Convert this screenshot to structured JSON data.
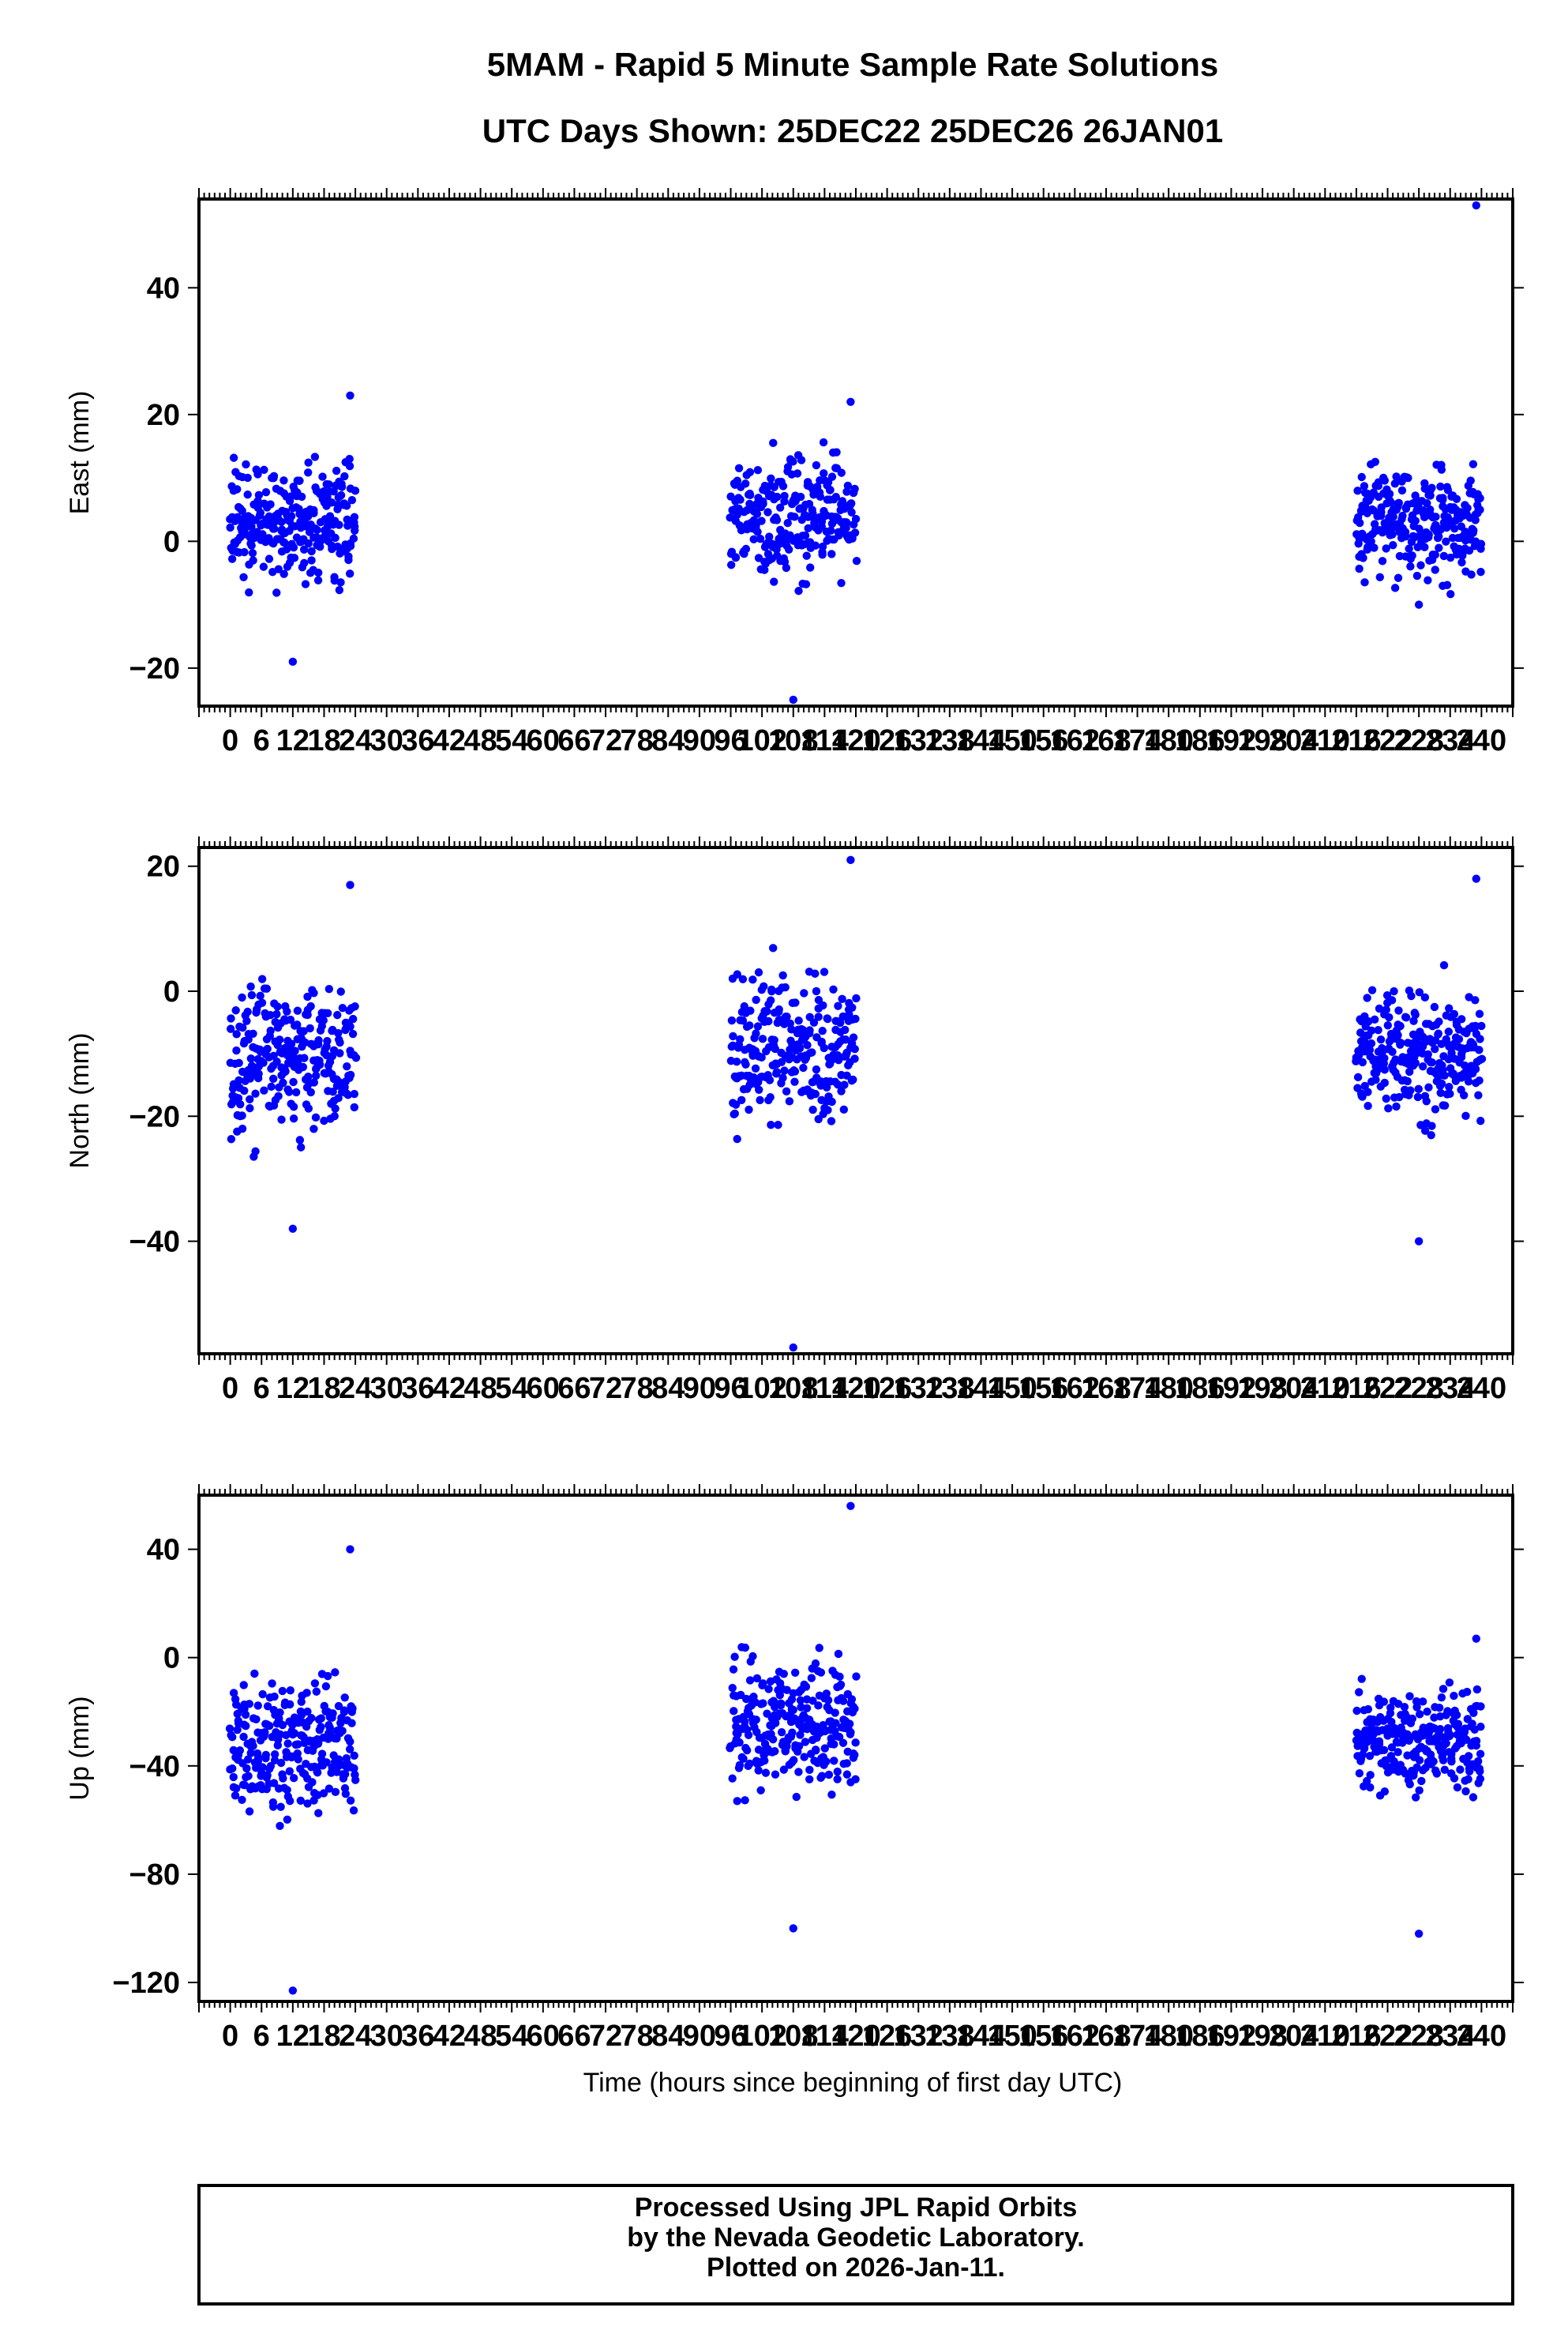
{
  "title_line1": "5MAM - Rapid 5 Minute Sample Rate Solutions",
  "title_line2": "UTC Days Shown:  25DEC22 25DEC26 26JAN01",
  "x_label": "Time (hours since beginning of first day UTC)",
  "footer": {
    "line1": "Processed Using JPL Rapid Orbits",
    "line2": "by the Nevada Geodetic Laboratory.",
    "line3": "Plotted on 2026-Jan-11."
  },
  "colors": {
    "points": "#0000ff",
    "axes": "#000000",
    "background": "#ffffff"
  },
  "chart_data": [
    {
      "type": "scatter",
      "ylabel": "East (mm)",
      "xlim": [
        -6,
        246
      ],
      "ylim": [
        -26,
        54
      ],
      "x_ticks": [
        0,
        6,
        12,
        18,
        24,
        30,
        36,
        42,
        48,
        54,
        60,
        66,
        72,
        78,
        84,
        90,
        96,
        102,
        108,
        114,
        120,
        126,
        132,
        138,
        144,
        150,
        156,
        162,
        168,
        174,
        180,
        186,
        192,
        198,
        204,
        210,
        216,
        222,
        228,
        234,
        240
      ],
      "y_ticks": [
        -20,
        0,
        20,
        40
      ],
      "clusters": [
        {
          "x_range": [
            0,
            24
          ],
          "y_center": 3,
          "y_spread": 11,
          "y_min": -19,
          "y_max": 23
        },
        {
          "x_range": [
            96,
            120
          ],
          "y_center": 4,
          "y_spread": 11,
          "y_min": -25,
          "y_max": 22
        },
        {
          "x_range": [
            216,
            240
          ],
          "y_center": 3,
          "y_spread": 10,
          "y_min": -10,
          "y_max": 53
        }
      ]
    },
    {
      "type": "scatter",
      "ylabel": "North (mm)",
      "xlim": [
        -6,
        246
      ],
      "ylim": [
        -58,
        23
      ],
      "x_ticks": [
        0,
        6,
        12,
        18,
        24,
        30,
        36,
        42,
        48,
        54,
        60,
        66,
        72,
        78,
        84,
        90,
        96,
        102,
        108,
        114,
        120,
        126,
        132,
        138,
        144,
        150,
        156,
        162,
        168,
        174,
        180,
        186,
        192,
        198,
        204,
        210,
        216,
        222,
        228,
        234,
        240
      ],
      "y_ticks": [
        -40,
        -20,
        0,
        20
      ],
      "clusters": [
        {
          "x_range": [
            0,
            24
          ],
          "y_center": -11,
          "y_spread": 14,
          "y_min": -38,
          "y_max": 17
        },
        {
          "x_range": [
            96,
            120
          ],
          "y_center": -9,
          "y_spread": 14,
          "y_min": -57,
          "y_max": 21
        },
        {
          "x_range": [
            216,
            240
          ],
          "y_center": -10,
          "y_spread": 12,
          "y_min": -40,
          "y_max": 18
        }
      ]
    },
    {
      "type": "scatter",
      "ylabel": "Up (mm)",
      "xlim": [
        -6,
        246
      ],
      "ylim": [
        -127,
        60
      ],
      "x_ticks": [
        0,
        6,
        12,
        18,
        24,
        30,
        36,
        42,
        48,
        54,
        60,
        66,
        72,
        78,
        84,
        90,
        96,
        102,
        108,
        114,
        120,
        126,
        132,
        138,
        144,
        150,
        156,
        162,
        168,
        174,
        180,
        186,
        192,
        198,
        204,
        210,
        216,
        222,
        228,
        234,
        240
      ],
      "y_ticks": [
        -120,
        -80,
        -40,
        0,
        40
      ],
      "clusters": [
        {
          "x_range": [
            0,
            24
          ],
          "y_center": -32,
          "y_spread": 28,
          "y_min": -123,
          "y_max": 40
        },
        {
          "x_range": [
            96,
            120
          ],
          "y_center": -25,
          "y_spread": 30,
          "y_min": -100,
          "y_max": 56
        },
        {
          "x_range": [
            216,
            240
          ],
          "y_center": -30,
          "y_spread": 22,
          "y_min": -102,
          "y_max": 7
        }
      ]
    }
  ]
}
